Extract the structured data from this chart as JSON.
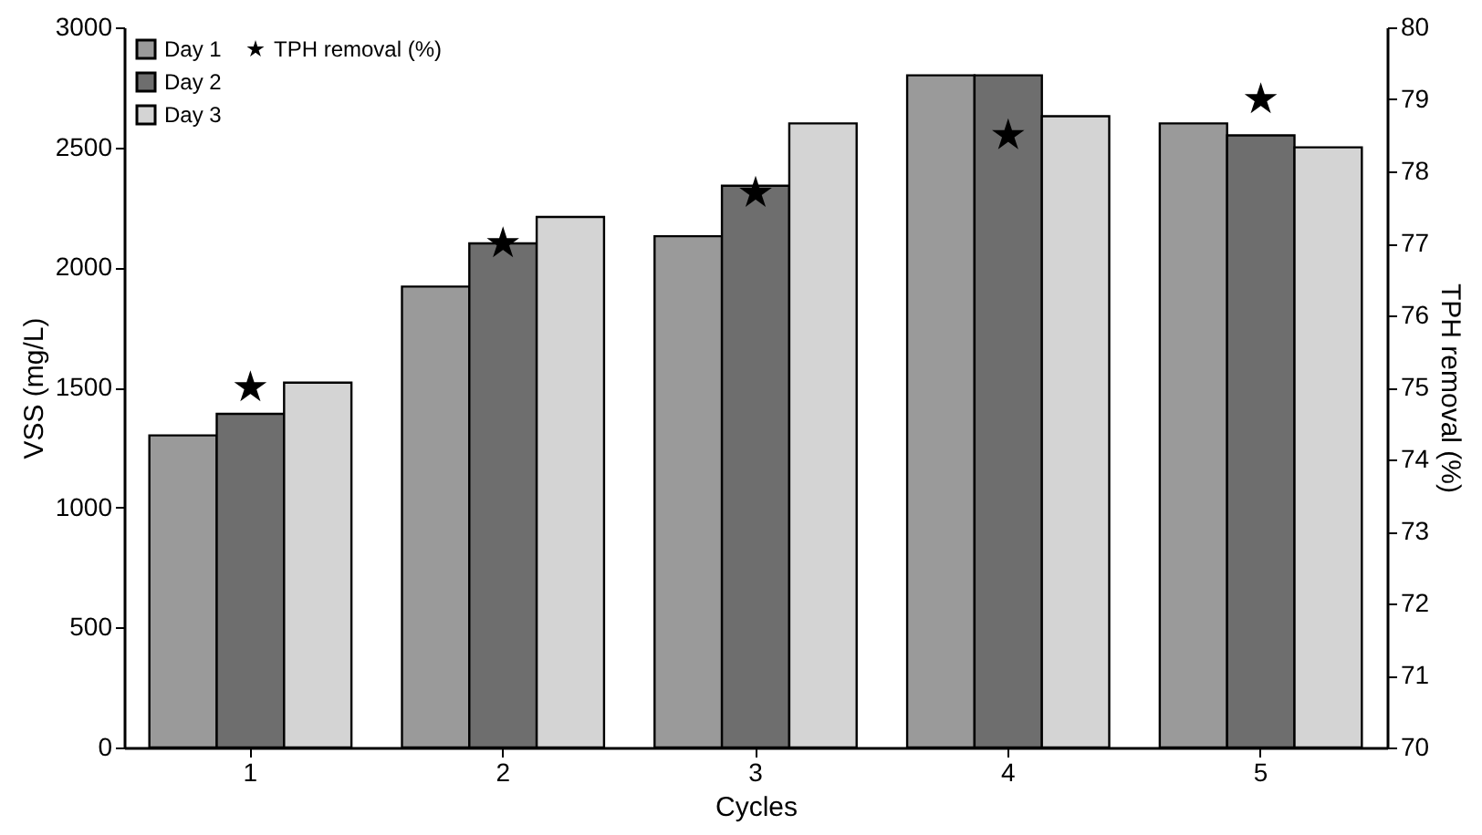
{
  "chart_data": {
    "type": "bar",
    "xlabel": "Cycles",
    "ylabel": "VSS (mg/L)",
    "y2label": "TPH removal (%)",
    "categories": [
      "1",
      "2",
      "3",
      "4",
      "5"
    ],
    "ylim": [
      0,
      3000
    ],
    "yticks": [
      0,
      500,
      1000,
      1500,
      2000,
      2500,
      3000
    ],
    "y2lim": [
      70,
      80
    ],
    "y2ticks": [
      70,
      71,
      72,
      73,
      74,
      75,
      76,
      77,
      78,
      79,
      80
    ],
    "legend": "top left",
    "grid": false,
    "series": [
      {
        "name": "Day 1",
        "color": "#9a9a9a",
        "values": [
          1300,
          1920,
          2130,
          2800,
          2600
        ]
      },
      {
        "name": "Day 2",
        "color": "#6e6e6e",
        "values": [
          1390,
          2100,
          2340,
          2800,
          2550
        ]
      },
      {
        "name": "Day 3",
        "color": "#d4d4d4",
        "values": [
          1520,
          2210,
          2600,
          2630,
          2500
        ]
      },
      {
        "name": "TPH removal (%)",
        "type": "scatter",
        "axis": "y2",
        "marker": "star",
        "color": "#000000",
        "values": [
          75.0,
          77.0,
          77.7,
          78.5,
          79.0
        ]
      }
    ]
  }
}
